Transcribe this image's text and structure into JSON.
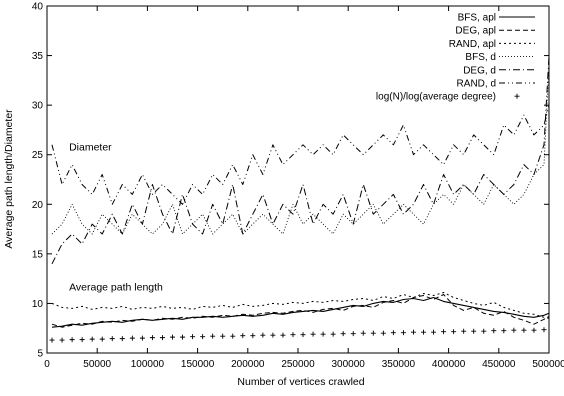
{
  "chart_data": {
    "type": "line",
    "title": "",
    "xlabel": "Number of vertices crawled",
    "ylabel": "Average path length/Diameter",
    "xlim": [
      0,
      500000
    ],
    "ylim": [
      5,
      40
    ],
    "xticks": [
      0,
      50000,
      100000,
      150000,
      200000,
      250000,
      300000,
      350000,
      400000,
      450000,
      500000
    ],
    "yticks": [
      5,
      10,
      15,
      20,
      25,
      30,
      35,
      40
    ],
    "grid": false,
    "legend_position": "top-right",
    "annotations": [
      {
        "text": "Diameter",
        "x": 22000,
        "y": 25.4
      },
      {
        "text": "Average path length",
        "x": 22000,
        "y": 11.3
      }
    ],
    "series": [
      {
        "name": "BFS, apl",
        "style": "solid",
        "x": [
          5000,
          15000,
          25000,
          35000,
          45000,
          55000,
          65000,
          75000,
          85000,
          95000,
          105000,
          115000,
          125000,
          135000,
          145000,
          155000,
          165000,
          175000,
          185000,
          195000,
          205000,
          215000,
          225000,
          235000,
          245000,
          255000,
          265000,
          275000,
          285000,
          295000,
          305000,
          315000,
          325000,
          335000,
          345000,
          355000,
          365000,
          375000,
          385000,
          395000,
          405000,
          415000,
          425000,
          435000,
          445000,
          455000,
          465000,
          475000,
          485000,
          495000,
          500000
        ],
        "values": [
          7.6,
          7.7,
          7.9,
          7.8,
          8.0,
          8.1,
          8.2,
          8.1,
          8.3,
          8.4,
          8.3,
          8.4,
          8.5,
          8.4,
          8.6,
          8.6,
          8.7,
          8.6,
          8.7,
          8.8,
          8.7,
          8.8,
          9.0,
          8.9,
          9.1,
          9.2,
          9.3,
          9.2,
          9.4,
          9.6,
          9.8,
          9.7,
          10.0,
          10.2,
          10.1,
          10.4,
          10.5,
          10.3,
          10.6,
          10.2,
          10.0,
          9.8,
          9.6,
          9.4,
          9.2,
          9.1,
          8.9,
          8.7,
          8.6,
          8.8,
          9.0
        ]
      },
      {
        "name": "DEG, apl",
        "style": "dashed",
        "x": [
          5000,
          15000,
          25000,
          35000,
          45000,
          55000,
          65000,
          75000,
          85000,
          95000,
          105000,
          115000,
          125000,
          135000,
          145000,
          155000,
          165000,
          175000,
          185000,
          195000,
          205000,
          215000,
          225000,
          235000,
          245000,
          255000,
          265000,
          275000,
          285000,
          295000,
          305000,
          315000,
          325000,
          335000,
          345000,
          355000,
          365000,
          375000,
          385000,
          395000,
          405000,
          415000,
          425000,
          435000,
          445000,
          455000,
          465000,
          475000,
          485000,
          495000,
          500000
        ],
        "values": [
          7.9,
          7.6,
          7.8,
          8.0,
          7.9,
          8.2,
          8.1,
          8.3,
          8.2,
          8.4,
          8.3,
          8.5,
          8.4,
          8.6,
          8.5,
          8.7,
          8.6,
          8.8,
          8.7,
          8.9,
          8.8,
          9.0,
          9.1,
          9.0,
          9.2,
          9.3,
          9.1,
          9.4,
          9.5,
          9.3,
          9.7,
          9.8,
          9.6,
          10.1,
          10.3,
          10.0,
          10.6,
          10.8,
          10.4,
          10.9,
          9.8,
          9.3,
          9.6,
          9.0,
          8.8,
          9.2,
          8.6,
          8.3,
          7.9,
          8.4,
          8.7
        ]
      },
      {
        "name": "RAND, apl",
        "style": "dotted",
        "x": [
          5000,
          15000,
          25000,
          35000,
          45000,
          55000,
          65000,
          75000,
          85000,
          95000,
          105000,
          115000,
          125000,
          135000,
          145000,
          155000,
          165000,
          175000,
          185000,
          195000,
          205000,
          215000,
          225000,
          235000,
          245000,
          255000,
          265000,
          275000,
          285000,
          295000,
          305000,
          315000,
          325000,
          335000,
          345000,
          355000,
          365000,
          375000,
          385000,
          395000,
          405000,
          415000,
          425000,
          435000,
          445000,
          455000,
          465000,
          475000,
          485000,
          495000,
          500000
        ],
        "values": [
          10.0,
          9.6,
          9.5,
          9.7,
          9.4,
          9.6,
          9.5,
          9.7,
          9.4,
          9.6,
          9.5,
          9.7,
          9.5,
          9.6,
          9.4,
          9.7,
          9.6,
          9.8,
          9.6,
          9.9,
          9.7,
          9.8,
          10.0,
          9.9,
          10.1,
          10.0,
          10.2,
          10.1,
          10.3,
          10.2,
          10.4,
          10.5,
          10.3,
          10.7,
          10.5,
          10.9,
          10.6,
          11.0,
          10.8,
          11.1,
          10.6,
          10.3,
          10.0,
          9.8,
          10.1,
          9.6,
          9.3,
          9.0,
          8.9,
          8.6,
          8.5
        ]
      },
      {
        "name": "BFS, d",
        "style": "fine-dotted",
        "x": [
          5000,
          15000,
          25000,
          35000,
          45000,
          55000,
          65000,
          75000,
          85000,
          95000,
          105000,
          115000,
          125000,
          135000,
          145000,
          155000,
          165000,
          175000,
          185000,
          195000,
          205000,
          215000,
          225000,
          235000,
          245000,
          255000,
          265000,
          275000,
          285000,
          295000,
          305000,
          315000,
          325000,
          335000,
          345000,
          355000,
          365000,
          375000,
          385000,
          395000,
          405000,
          415000,
          425000,
          435000,
          445000,
          455000,
          465000,
          475000,
          485000,
          495000,
          500000
        ],
        "values": [
          17,
          18,
          20,
          18,
          17,
          19,
          18,
          17,
          19,
          18,
          17,
          18,
          20,
          17,
          18,
          19,
          17,
          18,
          19,
          17,
          18,
          19,
          18,
          17,
          20,
          18,
          19,
          18,
          17,
          19,
          18,
          19,
          20,
          18,
          19,
          20,
          19,
          18,
          20,
          21,
          20,
          22,
          21,
          20,
          22,
          21,
          20,
          21,
          23,
          24,
          34
        ]
      },
      {
        "name": "DEG, d",
        "style": "dash-dot",
        "x": [
          5000,
          15000,
          25000,
          35000,
          45000,
          55000,
          65000,
          75000,
          85000,
          95000,
          105000,
          115000,
          125000,
          135000,
          145000,
          155000,
          165000,
          175000,
          185000,
          195000,
          205000,
          215000,
          225000,
          235000,
          245000,
          255000,
          265000,
          275000,
          285000,
          295000,
          305000,
          315000,
          325000,
          335000,
          345000,
          355000,
          365000,
          375000,
          385000,
          395000,
          405000,
          415000,
          425000,
          435000,
          445000,
          455000,
          465000,
          475000,
          485000,
          495000,
          500000
        ],
        "values": [
          14,
          16,
          17,
          16,
          18,
          17,
          19,
          17,
          20,
          18,
          22,
          19,
          17,
          21,
          18,
          17,
          20,
          18,
          22,
          17,
          19,
          21,
          18,
          20,
          19,
          22,
          18,
          20,
          19,
          21,
          18,
          22,
          19,
          20,
          21,
          19,
          20,
          22,
          20,
          23,
          21,
          22,
          21,
          23,
          22,
          21,
          22,
          24,
          23,
          26,
          35
        ]
      },
      {
        "name": "RAND, d",
        "style": "dash-dot-dot",
        "x": [
          5000,
          15000,
          25000,
          35000,
          45000,
          55000,
          65000,
          75000,
          85000,
          95000,
          105000,
          115000,
          125000,
          135000,
          145000,
          155000,
          165000,
          175000,
          185000,
          195000,
          205000,
          215000,
          225000,
          235000,
          245000,
          255000,
          265000,
          275000,
          285000,
          295000,
          305000,
          315000,
          325000,
          335000,
          345000,
          355000,
          365000,
          375000,
          385000,
          395000,
          405000,
          415000,
          425000,
          435000,
          445000,
          455000,
          465000,
          475000,
          485000,
          495000,
          500000
        ],
        "values": [
          26,
          22,
          24,
          22,
          21,
          23,
          20,
          22,
          21,
          23,
          21,
          22,
          21,
          20,
          22,
          21,
          23,
          22,
          24,
          22,
          25,
          23,
          26,
          24,
          25,
          26,
          25,
          26,
          25,
          27,
          26,
          25,
          26,
          27,
          26,
          28,
          25,
          26,
          25,
          24,
          26,
          25,
          27,
          26,
          25,
          28,
          27,
          29,
          27,
          28,
          30
        ]
      },
      {
        "name": "log(N)/log(average degree)",
        "style": "plus-markers",
        "x": [
          5000,
          15000,
          25000,
          35000,
          45000,
          55000,
          65000,
          75000,
          85000,
          95000,
          105000,
          115000,
          125000,
          135000,
          145000,
          155000,
          165000,
          175000,
          185000,
          195000,
          205000,
          215000,
          225000,
          235000,
          245000,
          255000,
          265000,
          275000,
          285000,
          295000,
          305000,
          315000,
          325000,
          335000,
          345000,
          355000,
          365000,
          375000,
          385000,
          395000,
          405000,
          415000,
          425000,
          435000,
          445000,
          455000,
          465000,
          475000,
          485000,
          495000
        ],
        "values": [
          6.3,
          6.3,
          6.35,
          6.35,
          6.4,
          6.4,
          6.45,
          6.45,
          6.5,
          6.5,
          6.55,
          6.55,
          6.6,
          6.6,
          6.65,
          6.65,
          6.7,
          6.7,
          6.7,
          6.75,
          6.75,
          6.8,
          6.8,
          6.8,
          6.85,
          6.85,
          6.9,
          6.9,
          6.9,
          6.95,
          6.95,
          7.0,
          7.0,
          7.0,
          7.05,
          7.05,
          7.1,
          7.1,
          7.1,
          7.15,
          7.15,
          7.2,
          7.2,
          7.2,
          7.25,
          7.25,
          7.3,
          7.3,
          7.3,
          7.35
        ]
      }
    ]
  }
}
